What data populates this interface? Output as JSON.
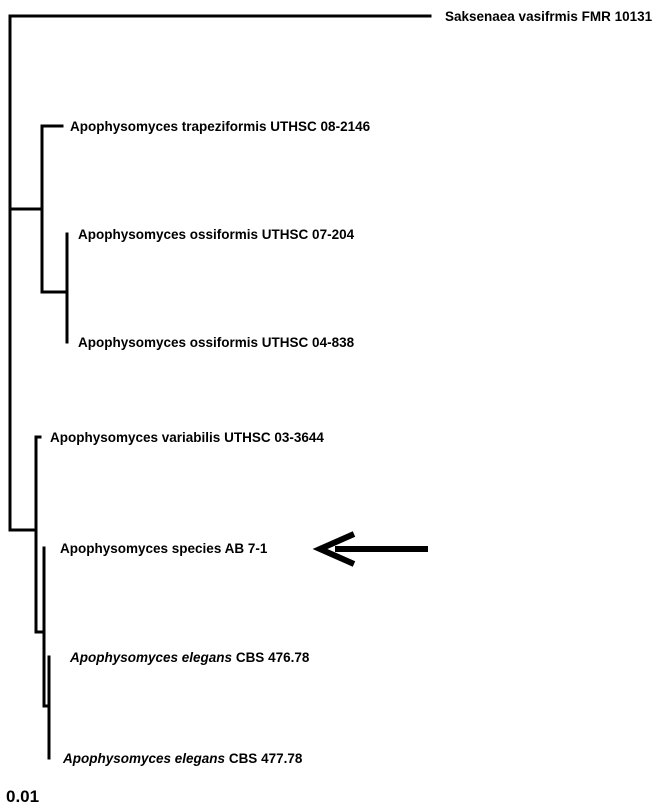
{
  "tree": {
    "leaves": [
      {
        "id": "saksenaea",
        "parts": [
          {
            "text": "Saksenaea vasifrmis FMR 10131",
            "italic": false
          }
        ]
      },
      {
        "id": "trapeziformis",
        "parts": [
          {
            "text": "Apophysomyces trapeziformis UTHSC 08-2146",
            "italic": false
          }
        ]
      },
      {
        "id": "ossiformis-07",
        "parts": [
          {
            "text": "Apophysomyces ossiformis UTHSC 07-204",
            "italic": false
          }
        ]
      },
      {
        "id": "ossiformis-04",
        "parts": [
          {
            "text": "Apophysomyces ossiformis UTHSC 04-838",
            "italic": false
          }
        ]
      },
      {
        "id": "variabilis",
        "parts": [
          {
            "text": "Apophysomyces variabilis UTHSC 03-3644",
            "italic": false
          }
        ]
      },
      {
        "id": "species-ab",
        "parts": [
          {
            "text": "Apophysomyces species AB 7-1",
            "italic": false
          }
        ]
      },
      {
        "id": "elegans-476",
        "parts": [
          {
            "text": "Apophysomyces elegans",
            "italic": true
          },
          {
            "text": " CBS 476.78",
            "italic": false
          }
        ]
      },
      {
        "id": "elegans-477",
        "parts": [
          {
            "text": "Apophysomyces elegans",
            "italic": true
          },
          {
            "text": " CBS 477.78",
            "italic": false
          }
        ]
      }
    ],
    "highlighted_leaf": "species-ab"
  },
  "scale_bar": {
    "label": "0.01"
  }
}
